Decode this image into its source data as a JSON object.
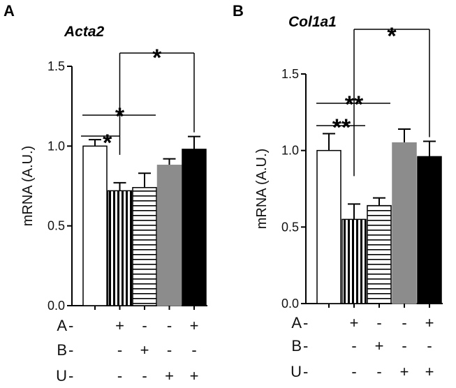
{
  "panels": [
    {
      "letter": "A",
      "title": "Acta2",
      "ylabel": "mRNA (A.U.)",
      "yticks": [
        "0.0",
        "0.5",
        "1.0",
        "1.5"
      ],
      "rows": [
        {
          "label": "A",
          "signs": [
            "-",
            "+",
            "-",
            "-",
            "+"
          ]
        },
        {
          "label": "B",
          "signs": [
            "-",
            "-",
            "+",
            "-",
            "-"
          ]
        },
        {
          "label": "U",
          "signs": [
            "-",
            "-",
            "-",
            "+",
            "+"
          ]
        }
      ],
      "stars": [
        "*",
        "*",
        "*"
      ]
    },
    {
      "letter": "B",
      "title": "Col1a1",
      "ylabel": "mRNA (A.U.)",
      "yticks": [
        "0.0",
        "0.5",
        "1.0",
        "1.5"
      ],
      "rows": [
        {
          "label": "A",
          "signs": [
            "-",
            "+",
            "-",
            "-",
            "+"
          ]
        },
        {
          "label": "B",
          "signs": [
            "-",
            "-",
            "+",
            "-",
            "-"
          ]
        },
        {
          "label": "U",
          "signs": [
            "-",
            "-",
            "-",
            "+",
            "+"
          ]
        }
      ],
      "stars": [
        "**",
        "**",
        "*"
      ]
    }
  ],
  "chart_data": [
    {
      "type": "bar",
      "title": "Acta2",
      "ylabel": "mRNA (A.U.)",
      "ylim": [
        0,
        1.5
      ],
      "categories": [
        "A- B- U-",
        "A+ B- U-",
        "A- B+ U-",
        "A- B- U+",
        "A+ B- U+"
      ],
      "values": [
        1.0,
        0.72,
        0.74,
        0.88,
        0.98
      ],
      "errors": [
        0.04,
        0.05,
        0.09,
        0.04,
        0.08
      ],
      "fills": [
        "white",
        "vertical-stripes",
        "horizontal-stripes",
        "#8c8c8c",
        "#000000"
      ],
      "significance": [
        {
          "groups": [
            0,
            1
          ],
          "label": "*"
        },
        {
          "groups": [
            0,
            2
          ],
          "label": "*"
        },
        {
          "groups": [
            1,
            4
          ],
          "label": "*"
        }
      ]
    },
    {
      "type": "bar",
      "title": "Col1a1",
      "ylabel": "mRNA (A.U.)",
      "ylim": [
        0,
        1.5
      ],
      "categories": [
        "A- B- U-",
        "A+ B- U-",
        "A- B+ U-",
        "A- B- U+",
        "A+ B- U+"
      ],
      "values": [
        1.0,
        0.55,
        0.64,
        1.05,
        0.96
      ],
      "errors": [
        0.11,
        0.1,
        0.05,
        0.09,
        0.1
      ],
      "fills": [
        "white",
        "vertical-stripes",
        "horizontal-stripes",
        "#8c8c8c",
        "#000000"
      ],
      "significance": [
        {
          "groups": [
            0,
            1
          ],
          "label": "**"
        },
        {
          "groups": [
            0,
            2
          ],
          "label": "**"
        },
        {
          "groups": [
            1,
            4
          ],
          "label": "*"
        }
      ]
    }
  ]
}
